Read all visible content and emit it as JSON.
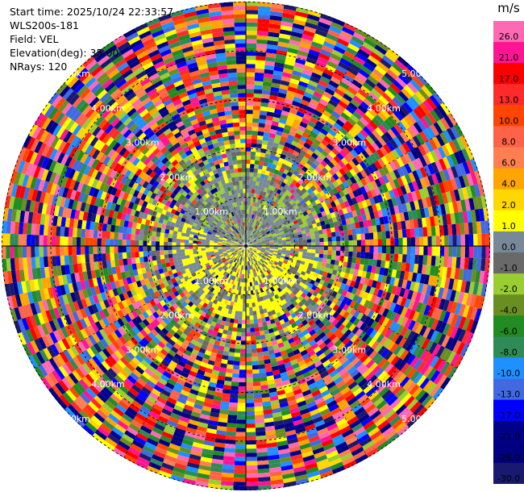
{
  "info": {
    "start_time": "Start time: 2025/10/24 22:33:57",
    "station": "WLS200s-181",
    "field": "Field: VEL",
    "elevation": "Elevation(deg): 35.00",
    "nrays": "NRays: 120"
  },
  "chart_data": {
    "type": "heatmap",
    "projection": "polar-ppi",
    "field": "VEL",
    "elevation_deg": 35.0,
    "nrays": 120,
    "range_rings_km": [
      1,
      2,
      3,
      4,
      5
    ],
    "ring_labels": [
      "1.00km",
      "2.00km",
      "3.00km",
      "4.00km",
      "5.00km"
    ],
    "colorbar": {
      "unit": "m/s",
      "ticks": [
        "26.0",
        "21.0",
        "17.0",
        "13.0",
        "10.0",
        "8.0",
        "6.0",
        "4.0",
        "2.0",
        "1.0",
        "0.0",
        "-1.0",
        "-2.0",
        "-4.0",
        "-6.0",
        "-8.0",
        "-10.0",
        "-13.0",
        "-17.0",
        "-21.0",
        "-26.0",
        "-30.0"
      ],
      "colors": [
        "#ff69b4",
        "#ff1493",
        "#ff0000",
        "#ff2a2a",
        "#ff4500",
        "#ff6347",
        "#ff7f50",
        "#ffa500",
        "#ffd700",
        "#ffff00",
        "#778899",
        "#696969",
        "#9acd32",
        "#6b8e23",
        "#228b22",
        "#2e8b57",
        "#1e90ff",
        "#4169e1",
        "#0000ff",
        "#00008b",
        "#000080",
        "#191970"
      ]
    }
  }
}
